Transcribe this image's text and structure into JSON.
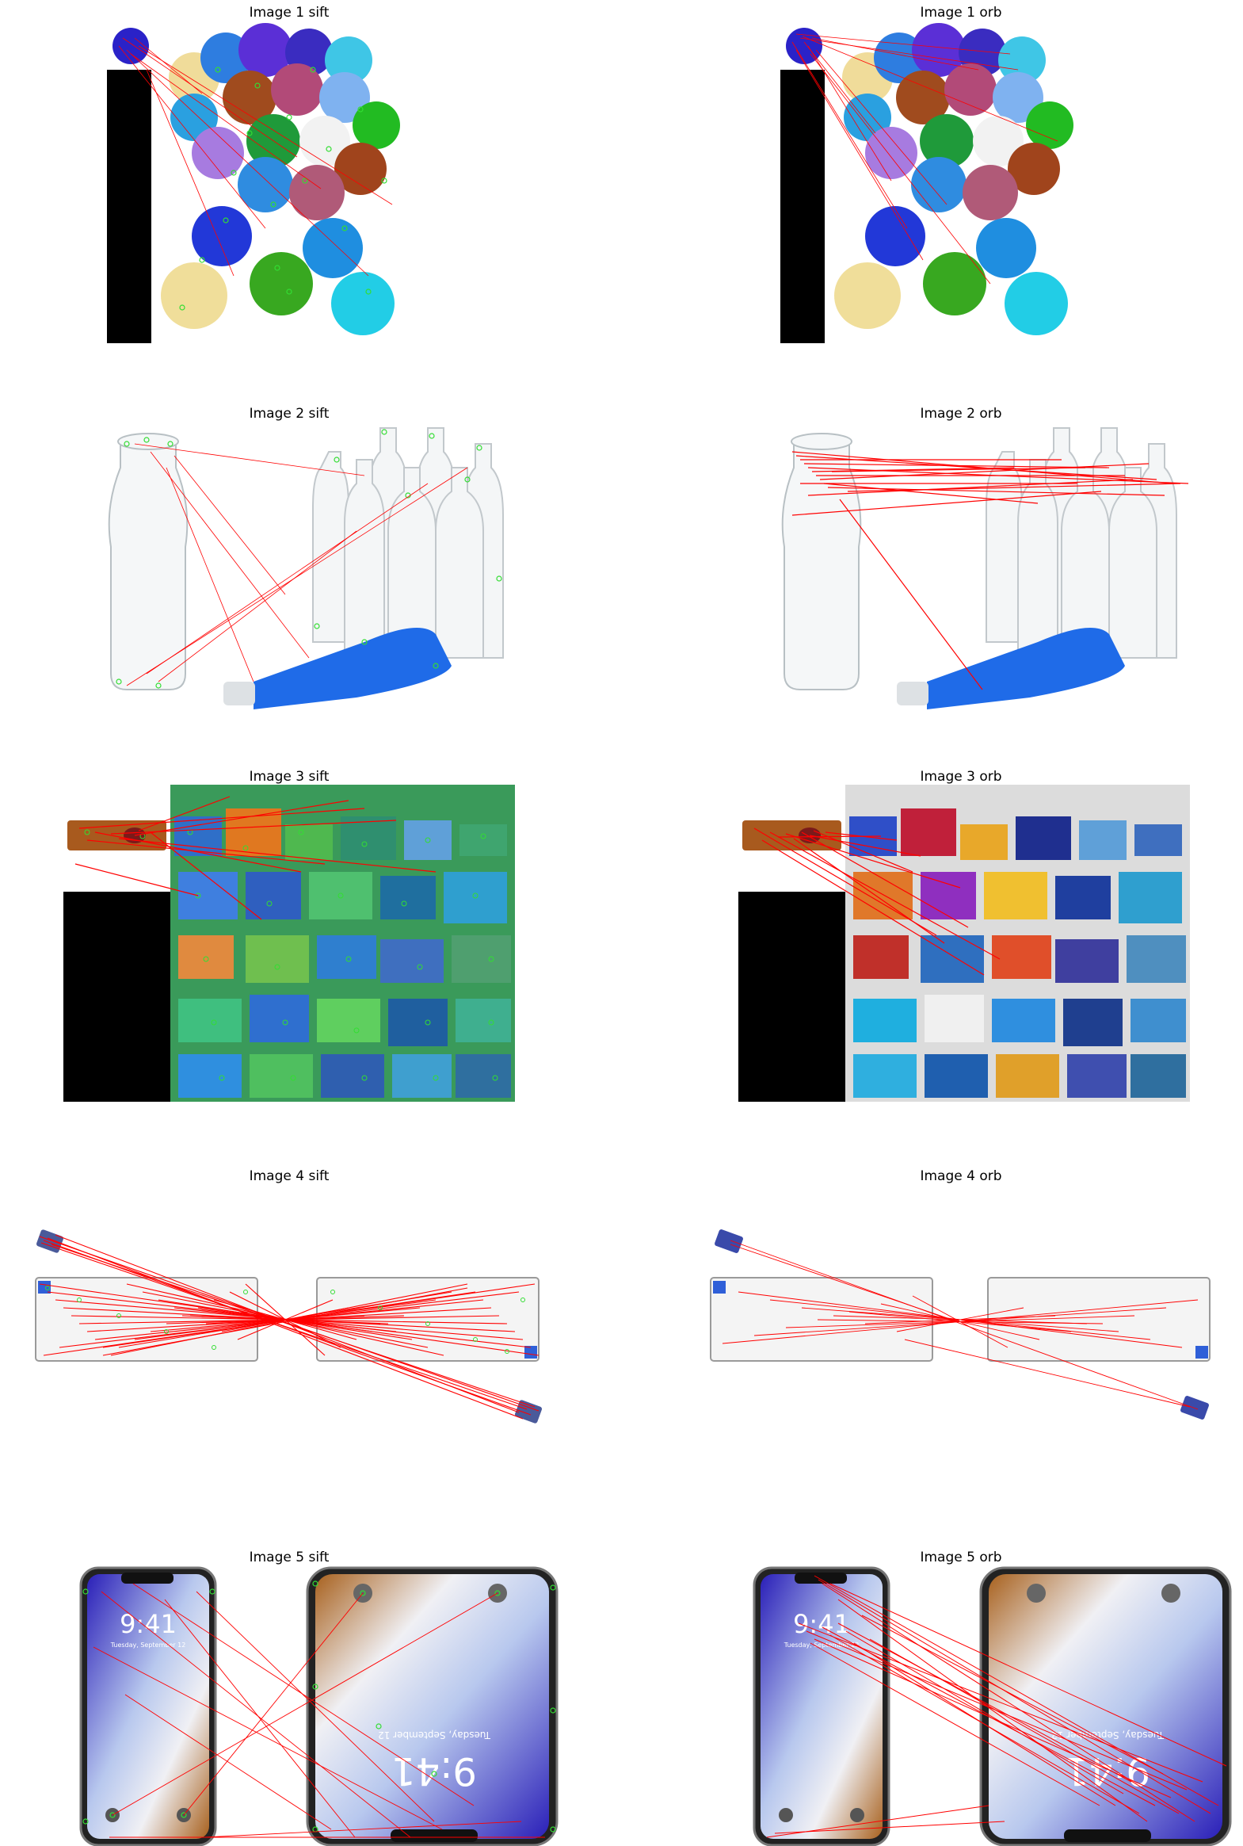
{
  "figure": {
    "titles": {
      "img1_sift": "Image 1 sift",
      "img1_orb": "Image 1 orb",
      "img2_sift": "Image 2 sift",
      "img2_orb": "Image 2 orb",
      "img3_sift": "Image 3 sift",
      "img3_orb": "Image 3 orb",
      "img4_sift": "Image 4 sift",
      "img4_orb": "Image 4 orb",
      "img5_sift": "Image 5 sift",
      "img5_orb": "Image 5 orb"
    },
    "colors": {
      "match_line": "#ff0000",
      "keypoint": "#33dd33",
      "pad": "#000000"
    },
    "phone": {
      "time": "9:41",
      "date": "Tuesday, September 12"
    }
  }
}
